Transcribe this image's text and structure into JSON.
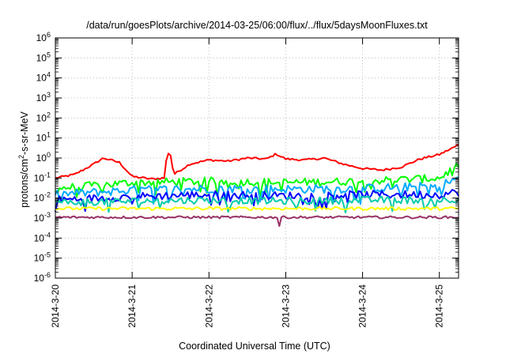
{
  "chart_data": {
    "type": "line",
    "title": "/data/run/goesPlots/archive/2014-03-25/06:00/flux/../flux/5daysMoonFluxes.txt",
    "xlabel": "Coordinated Universal Time (UTC)",
    "ylabel": "protons/cm²-s-sr-MeV",
    "ylabel_parts": {
      "pre": "protons/cm",
      "sup": "2",
      "post": "-s-sr-MeV"
    },
    "y_scale": "log",
    "ylim": [
      1e-06,
      1000000.0
    ],
    "y_ticks": [
      {
        "value": 1e-06,
        "base": "10",
        "exp": "-6"
      },
      {
        "value": 1e-05,
        "base": "10",
        "exp": "-5"
      },
      {
        "value": 0.0001,
        "base": "10",
        "exp": "-4"
      },
      {
        "value": 0.001,
        "base": "10",
        "exp": "-3"
      },
      {
        "value": 0.01,
        "base": "10",
        "exp": "-2"
      },
      {
        "value": 0.1,
        "base": "10",
        "exp": "-1"
      },
      {
        "value": 1,
        "base": "10",
        "exp": "0"
      },
      {
        "value": 10.0,
        "base": "10",
        "exp": "1"
      },
      {
        "value": 100.0,
        "base": "10",
        "exp": "2"
      },
      {
        "value": 1000.0,
        "base": "10",
        "exp": "3"
      },
      {
        "value": 10000.0,
        "base": "10",
        "exp": "4"
      },
      {
        "value": 100000.0,
        "base": "10",
        "exp": "5"
      },
      {
        "value": 1000000.0,
        "base": "10",
        "exp": "6"
      }
    ],
    "xlim": [
      "2014-03-20",
      "2014-03-25 06:00"
    ],
    "x_ticks": [
      {
        "value": "2014-03-20",
        "label": "2014-3-20"
      },
      {
        "value": "2014-03-21",
        "label": "2014-3-21"
      },
      {
        "value": "2014-03-22",
        "label": "2014-3-22"
      },
      {
        "value": "2014-03-23",
        "label": "2014-3-23"
      },
      {
        "value": "2014-03-24",
        "label": "2014-3-24"
      },
      {
        "value": "2014-03-25",
        "label": "2014-3-25"
      }
    ],
    "grid": true,
    "legend": "none",
    "series": [
      {
        "color": "#ff0000",
        "noise": 0.05,
        "points": [
          [
            "2014-03-20 00:00",
            0.1
          ],
          [
            "2014-03-20 06:00",
            0.15
          ],
          [
            "2014-03-20 12:00",
            0.5
          ],
          [
            "2014-03-20 15:00",
            1.0
          ],
          [
            "2014-03-20 20:00",
            0.6
          ],
          [
            "2014-03-21 00:00",
            0.12
          ],
          [
            "2014-03-21 06:00",
            0.09
          ],
          [
            "2014-03-21 10:00",
            0.1
          ],
          [
            "2014-03-21 11:00",
            2.0
          ],
          [
            "2014-03-21 12:00",
            1.4
          ],
          [
            "2014-03-21 13:00",
            0.15
          ],
          [
            "2014-03-21 18:00",
            0.5
          ],
          [
            "2014-03-22 00:00",
            0.8
          ],
          [
            "2014-03-22 06:00",
            0.7
          ],
          [
            "2014-03-22 12:00",
            1.0
          ],
          [
            "2014-03-22 18:00",
            0.9
          ],
          [
            "2014-03-22 21:00",
            1.6
          ],
          [
            "2014-03-23 00:00",
            0.9
          ],
          [
            "2014-03-23 06:00",
            0.8
          ],
          [
            "2014-03-23 12:00",
            1.0
          ],
          [
            "2014-03-23 18:00",
            0.5
          ],
          [
            "2014-03-24 00:00",
            0.3
          ],
          [
            "2014-03-24 06:00",
            0.25
          ],
          [
            "2014-03-24 12:00",
            0.35
          ],
          [
            "2014-03-24 18:00",
            0.9
          ],
          [
            "2014-03-25 00:00",
            1.5
          ],
          [
            "2014-03-25 06:00",
            4.5
          ]
        ]
      },
      {
        "color": "#00ff00",
        "noise": 0.2,
        "points": [
          [
            "2014-03-20 00:00",
            0.03
          ],
          [
            "2014-03-21 00:00",
            0.06
          ],
          [
            "2014-03-22 00:00",
            0.07
          ],
          [
            "2014-03-23 00:00",
            0.06
          ],
          [
            "2014-03-24 00:00",
            0.07
          ],
          [
            "2014-03-25 00:00",
            0.1
          ],
          [
            "2014-03-25 06:00",
            0.45
          ]
        ]
      },
      {
        "color": "#00aaff",
        "noise": 0.22,
        "points": [
          [
            "2014-03-20 00:00",
            0.015
          ],
          [
            "2014-03-21 00:00",
            0.025
          ],
          [
            "2014-03-22 00:00",
            0.03
          ],
          [
            "2014-03-23 00:00",
            0.028
          ],
          [
            "2014-03-24 00:00",
            0.03
          ],
          [
            "2014-03-25 00:00",
            0.04
          ],
          [
            "2014-03-25 06:00",
            0.1
          ]
        ]
      },
      {
        "color": "#0000ff",
        "noise": 0.2,
        "points": [
          [
            "2014-03-20 00:00",
            0.008
          ],
          [
            "2014-03-21 00:00",
            0.012
          ],
          [
            "2014-03-22 00:00",
            0.015
          ],
          [
            "2014-03-23 00:00",
            0.013
          ],
          [
            "2014-03-24 00:00",
            0.015
          ],
          [
            "2014-03-25 00:00",
            0.015
          ],
          [
            "2014-03-25 06:00",
            0.02
          ]
        ]
      },
      {
        "color": "#00ccaa",
        "noise": 0.18,
        "points": [
          [
            "2014-03-20 00:00",
            0.006
          ],
          [
            "2014-03-21 00:00",
            0.007
          ],
          [
            "2014-03-22 00:00",
            0.008
          ],
          [
            "2014-03-23 00:00",
            0.007
          ],
          [
            "2014-03-24 00:00",
            0.008
          ],
          [
            "2014-03-25 00:00",
            0.008
          ],
          [
            "2014-03-25 06:00",
            0.009
          ]
        ]
      },
      {
        "color": "#ffff00",
        "noise": 0.08,
        "points": [
          [
            "2014-03-20 00:00",
            0.003
          ],
          [
            "2014-03-21 00:00",
            0.003
          ],
          [
            "2014-03-22 00:00",
            0.003
          ],
          [
            "2014-03-23 00:00",
            0.003
          ],
          [
            "2014-03-24 00:00",
            0.003
          ],
          [
            "2014-03-25 06:00",
            0.003
          ]
        ]
      },
      {
        "color": "#993366",
        "noise": 0.06,
        "points": [
          [
            "2014-03-20 00:00",
            0.0011
          ],
          [
            "2014-03-21 00:00",
            0.0011
          ],
          [
            "2014-03-22 00:00",
            0.0011
          ],
          [
            "2014-03-23 00:00",
            0.0011
          ],
          [
            "2014-03-24 00:00",
            0.0011
          ],
          [
            "2014-03-25 06:00",
            0.0011
          ]
        ]
      }
    ],
    "dips": [
      {
        "time": "2014-03-22 22:00",
        "value": 0.0004
      }
    ]
  }
}
